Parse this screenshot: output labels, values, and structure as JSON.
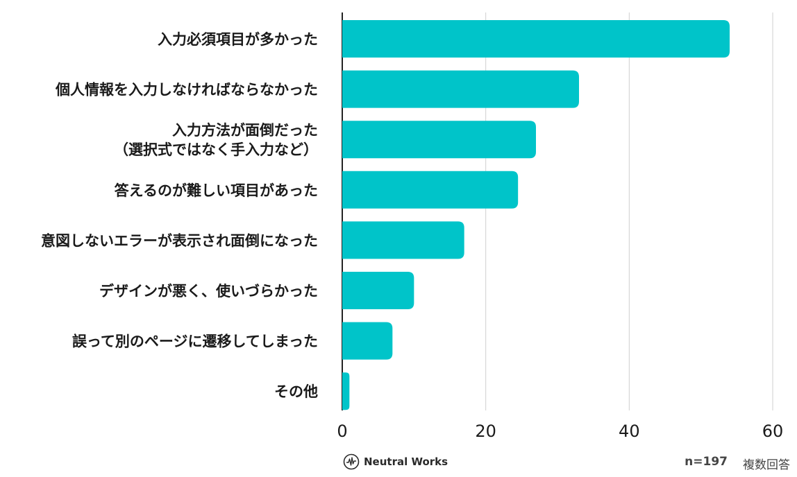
{
  "chart_data": {
    "type": "bar",
    "orientation": "horizontal",
    "categories": [
      [
        "入力必須項目が多かった"
      ],
      [
        "個人情報を入力しなければならなかった"
      ],
      [
        "入力方法が面倒だった",
        "（選択式ではなく手入力など）"
      ],
      [
        "答えるのが難しい項目があった"
      ],
      [
        "意図しないエラーが表示され面倒になった"
      ],
      [
        "デザインが悪く、使いづらかった"
      ],
      [
        "誤って別のページに遷移してしまった"
      ],
      [
        "その他"
      ]
    ],
    "values": [
      54,
      33,
      27,
      24.5,
      17,
      10,
      7,
      1
    ],
    "xlim": [
      0,
      60
    ],
    "xticks": [
      0,
      20,
      40,
      60
    ],
    "grid": true,
    "bar_color": "#00c4c9",
    "title": "",
    "xlabel": "",
    "ylabel": ""
  },
  "footer": {
    "brand": "Neutral Works",
    "logo_icon": "waveform-circle-icon",
    "sample_size": "n=197",
    "note": "複数回答"
  }
}
